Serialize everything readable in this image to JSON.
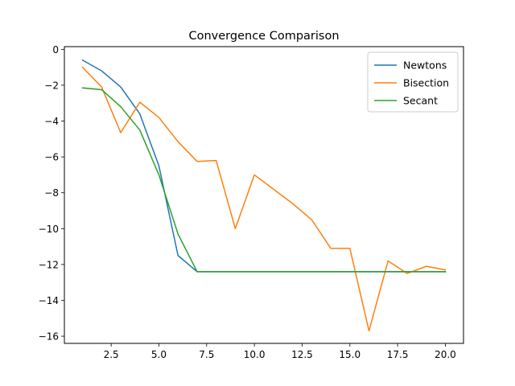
{
  "chart_data": {
    "type": "line",
    "title": "Convergence Comparison",
    "xlabel": "",
    "ylabel": "",
    "xlim": [
      0.05,
      20.95
    ],
    "ylim": [
      -16.4,
      0.15
    ],
    "xticks": [
      2.5,
      5.0,
      7.5,
      10.0,
      12.5,
      15.0,
      17.5,
      20.0
    ],
    "xtick_labels": [
      "2.5",
      "5.0",
      "7.5",
      "10.0",
      "12.5",
      "15.0",
      "17.5",
      "20.0"
    ],
    "yticks": [
      0,
      -2,
      -4,
      -6,
      -8,
      -10,
      -12,
      -14,
      -16
    ],
    "ytick_labels": [
      "0",
      "−2",
      "−4",
      "−6",
      "−8",
      "−10",
      "−12",
      "−14",
      "−16"
    ],
    "grid": false,
    "legend_position": "top-right",
    "x": [
      1,
      2,
      3,
      4,
      5,
      6,
      7,
      8,
      9,
      10,
      11,
      12,
      13,
      14,
      15,
      16,
      17,
      18,
      19,
      20
    ],
    "series": [
      {
        "name": "Newtons",
        "color": "#1f77b4",
        "values": [
          -0.6,
          -1.2,
          -2.1,
          -3.6,
          -6.5,
          -11.5,
          -12.4,
          -12.4,
          -12.4,
          -12.4,
          -12.4,
          -12.4,
          -12.4,
          -12.4,
          -12.4,
          -12.4,
          -12.4,
          -12.4,
          -12.4,
          -12.4
        ]
      },
      {
        "name": "Bisection",
        "color": "#ff7f0e",
        "values": [
          -1.0,
          -2.1,
          -4.65,
          -2.95,
          -3.8,
          -5.15,
          -6.25,
          -6.2,
          -10.0,
          -7.0,
          -7.8,
          -8.6,
          -9.5,
          -11.1,
          -11.1,
          -15.7,
          -11.8,
          -12.5,
          -12.1,
          -12.3
        ]
      },
      {
        "name": "Secant",
        "color": "#2ca02c",
        "values": [
          -2.15,
          -2.25,
          -3.2,
          -4.5,
          -7.0,
          -10.3,
          -12.4,
          -12.4,
          -12.4,
          -12.4,
          -12.4,
          -12.4,
          -12.4,
          -12.4,
          -12.4,
          -12.4,
          -12.4,
          -12.4,
          -12.4,
          -12.4
        ]
      }
    ]
  }
}
